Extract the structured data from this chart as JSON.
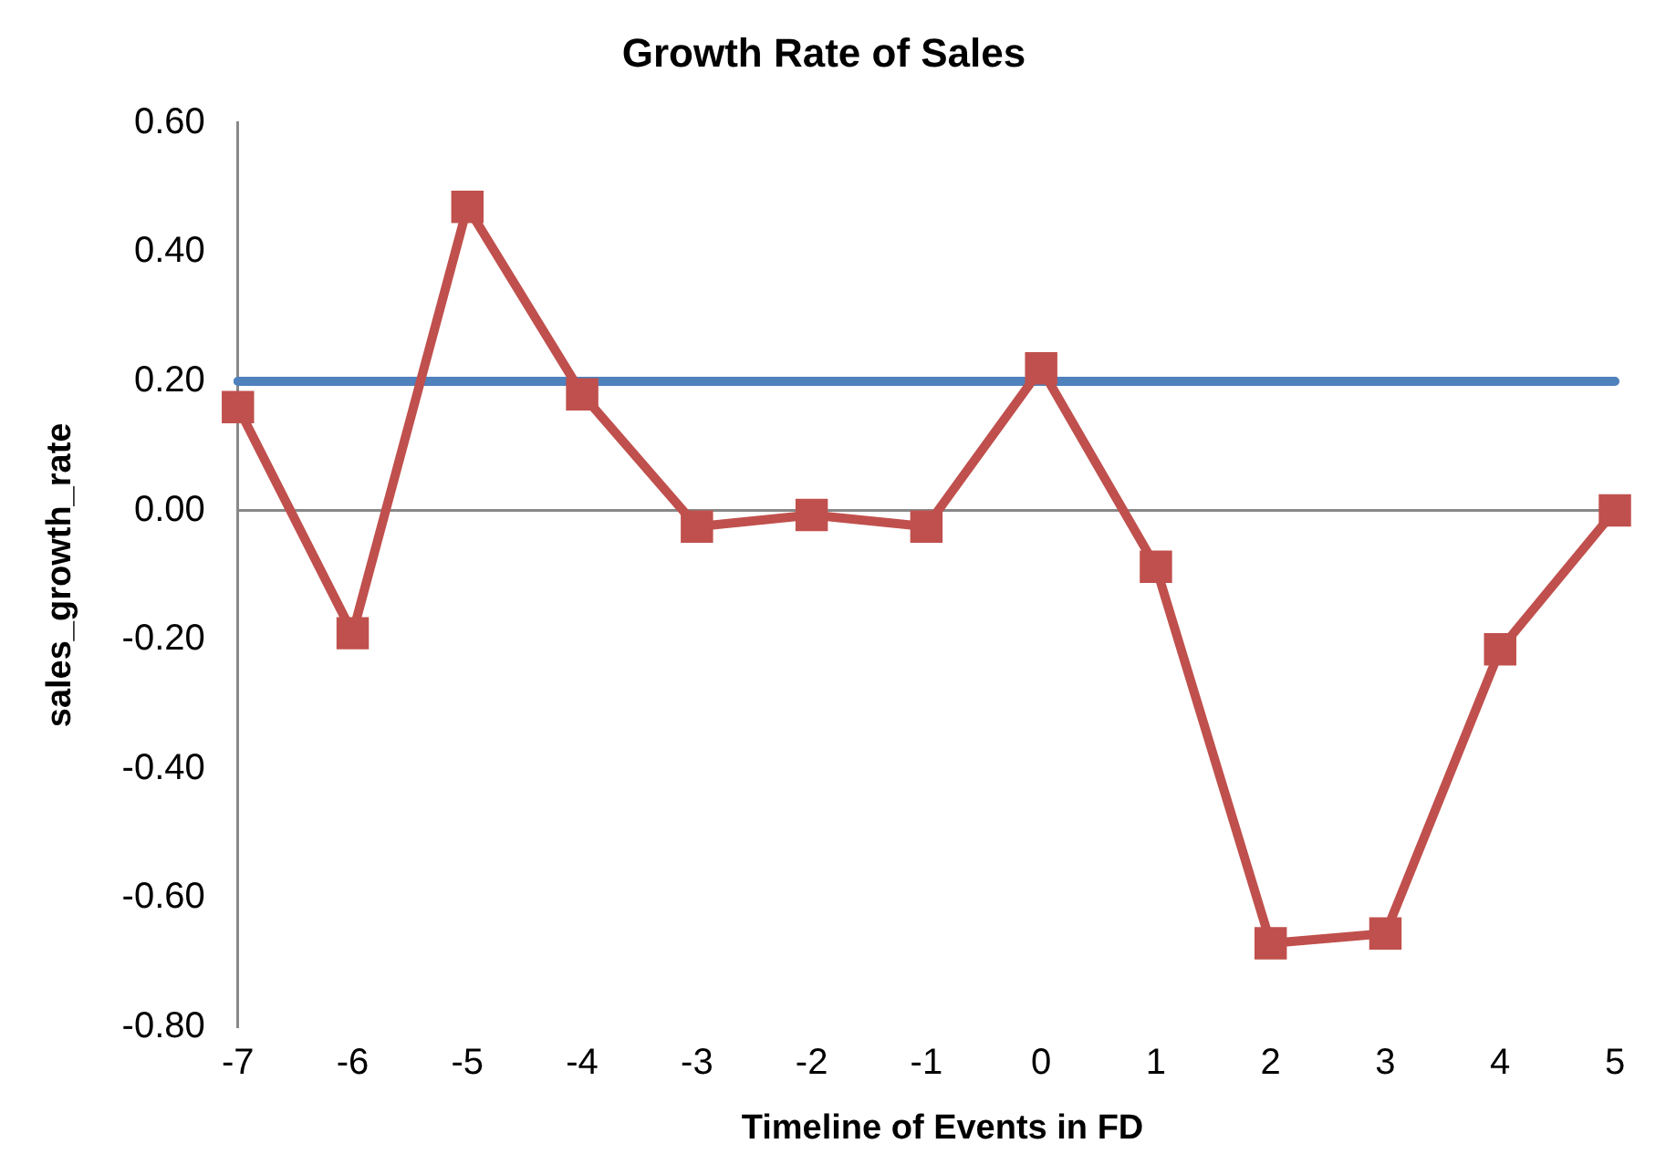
{
  "chart_data": {
    "type": "line",
    "title": "Growth Rate of Sales",
    "xlabel": "Timeline of Events in FD",
    "ylabel": "sales_growth_rate",
    "categories": [
      "-7",
      "-6",
      "-5",
      "-4",
      "-3",
      "-2",
      "-1",
      "0",
      "1",
      "2",
      "3",
      "4",
      "5"
    ],
    "series": [
      {
        "color": "#c0504d",
        "marker": "square",
        "values": [
          0.16,
          -0.19,
          0.47,
          0.18,
          -0.025,
          -0.007,
          -0.025,
          0.22,
          -0.087,
          -0.67,
          -0.655,
          -0.215,
          0.0
        ]
      },
      {
        "color": "#4f81bd",
        "marker": "none",
        "values": [
          0.2,
          0.2,
          0.2,
          0.2,
          0.2,
          0.2,
          0.2,
          0.2,
          0.2,
          0.2,
          0.2,
          0.2,
          0.2
        ]
      }
    ],
    "ylim": [
      -0.8,
      0.6
    ],
    "yticks": [
      {
        "value": -0.8,
        "label": "-0.80"
      },
      {
        "value": -0.6,
        "label": "-0.60"
      },
      {
        "value": -0.4,
        "label": "-0.40"
      },
      {
        "value": -0.2,
        "label": "-0.20"
      },
      {
        "value": 0,
        "label": "0.00"
      },
      {
        "value": 0.2,
        "label": "0.20"
      },
      {
        "value": 0.4,
        "label": "0.40"
      },
      {
        "value": 0.6,
        "label": "0.60"
      }
    ],
    "legend": false
  }
}
